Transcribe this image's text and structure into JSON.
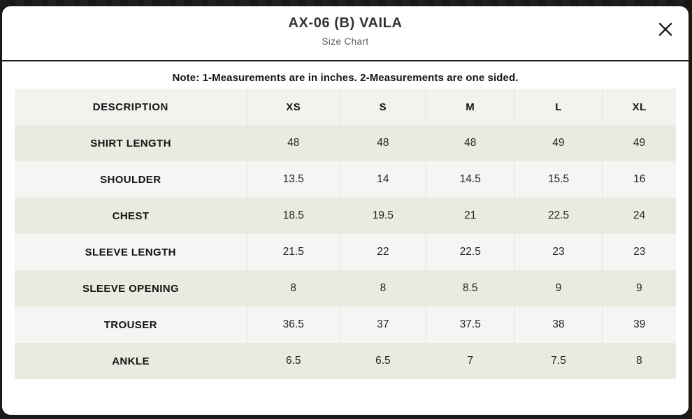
{
  "modal": {
    "title": "AX-06 (B) VAILA",
    "subtitle": "Size Chart",
    "note": "Note: 1-Measurements are in inches. 2-Measurements are one sided.",
    "close_icon": "close-x"
  },
  "table": {
    "columns": [
      "DESCRIPTION",
      "XS",
      "S",
      "M",
      "L",
      "XL"
    ],
    "rows": [
      {
        "label": "SHIRT LENGTH",
        "values": [
          "48",
          "48",
          "48",
          "49",
          "49"
        ]
      },
      {
        "label": "SHOULDER",
        "values": [
          "13.5",
          "14",
          "14.5",
          "15.5",
          "16"
        ]
      },
      {
        "label": "CHEST",
        "values": [
          "18.5",
          "19.5",
          "21",
          "22.5",
          "24"
        ]
      },
      {
        "label": "SLEEVE LENGTH",
        "values": [
          "21.5",
          "22",
          "22.5",
          "23",
          "23"
        ]
      },
      {
        "label": "SLEEVE OPENING",
        "values": [
          "8",
          "8",
          "8.5",
          "9",
          "9"
        ]
      },
      {
        "label": "TROUSER",
        "values": [
          "36.5",
          "37",
          "37.5",
          "38",
          "39"
        ]
      },
      {
        "label": "ANKLE",
        "values": [
          "6.5",
          "6.5",
          "7",
          "7.5",
          "8"
        ]
      }
    ]
  },
  "colors": {
    "backdrop": "#191918",
    "modal_bg": "#ffffff",
    "header_rule": "#1c1c1c",
    "header_row_bg": "#f2f2ef",
    "row_beige": "#e9ebe0",
    "row_light": "#f5f5f3",
    "divider": "#e1e1de",
    "text_strong": "#141414",
    "text_value": "#242525",
    "subtitle": "#5a5a5a"
  }
}
